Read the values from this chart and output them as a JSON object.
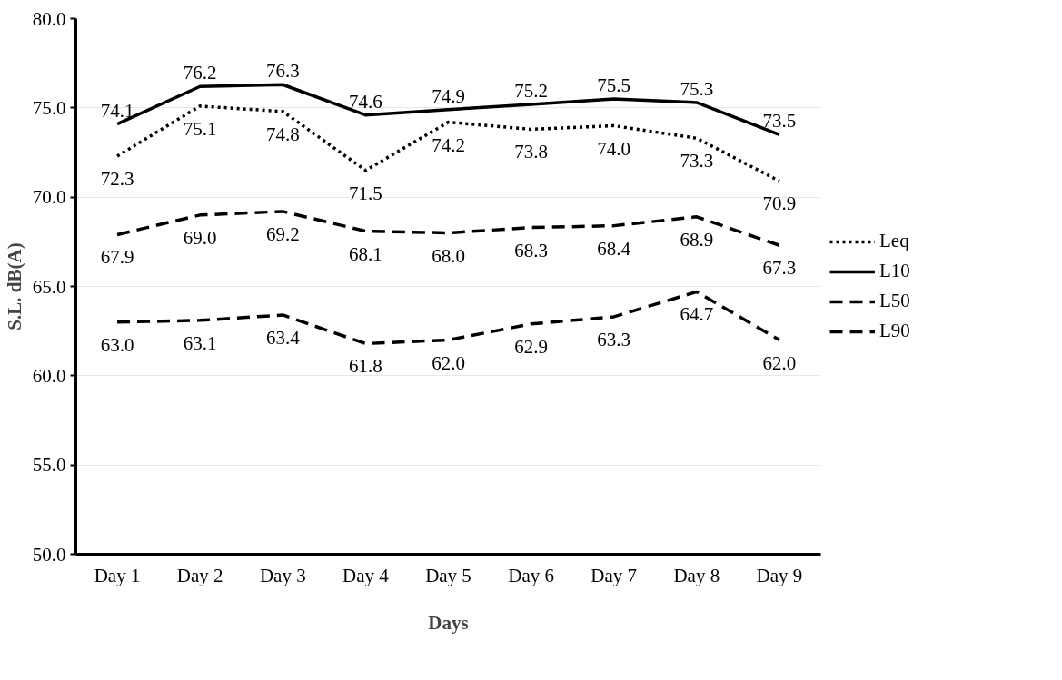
{
  "chart_data": {
    "type": "line",
    "xlabel": "Days",
    "ylabel": "S.L. dB(A)",
    "categories": [
      "Day 1",
      "Day 2",
      "Day 3",
      "Day 4",
      "Day 5",
      "Day 6",
      "Day 7",
      "Day 8",
      "Day 9"
    ],
    "series": [
      {
        "name": "Leq",
        "color": "#000000",
        "line_style": "dotted",
        "values": [
          72.3,
          75.1,
          74.8,
          71.5,
          74.2,
          73.8,
          74.0,
          73.3,
          70.9
        ],
        "value_labels": [
          "72.3",
          "75.1",
          "74.8",
          "71.5",
          "74.2",
          "73.8",
          "74.0",
          "73.3",
          "70.9"
        ]
      },
      {
        "name": "L10",
        "color": "#000000",
        "line_style": "solid",
        "values": [
          74.1,
          76.2,
          76.3,
          74.6,
          74.9,
          75.2,
          75.5,
          75.3,
          73.5
        ],
        "value_labels": [
          "74.1",
          "76.2",
          "76.3",
          "74.6",
          "74.9",
          "75.2",
          "75.5",
          "75.3",
          "73.5"
        ]
      },
      {
        "name": "L50",
        "color": "#000000",
        "line_style": "dashed",
        "values": [
          67.9,
          69.0,
          69.2,
          68.1,
          68.0,
          68.3,
          68.4,
          68.9,
          67.3
        ],
        "value_labels": [
          "67.9",
          "69.0",
          "69.2",
          "68.1",
          "68.0",
          "68.3",
          "68.4",
          "68.9",
          "67.3"
        ]
      },
      {
        "name": "L90",
        "color": "#000000",
        "line_style": "dashed",
        "values": [
          63.0,
          63.1,
          63.4,
          61.8,
          62.0,
          62.9,
          63.3,
          64.7,
          62.0
        ],
        "value_labels": [
          "63.0",
          "63.1",
          "63.4",
          "61.8",
          "62.0",
          "62.9",
          "63.3",
          "64.7",
          "62.0"
        ]
      }
    ],
    "ylim": [
      50,
      80
    ],
    "yticks": [
      {
        "value": 50,
        "label": "50.0"
      },
      {
        "value": 55,
        "label": "55.0"
      },
      {
        "value": 60,
        "label": "60.0"
      },
      {
        "value": 65,
        "label": "65.0"
      },
      {
        "value": 70,
        "label": "70.0"
      },
      {
        "value": 75,
        "label": "75.0"
      },
      {
        "value": 80,
        "label": "80.0"
      }
    ],
    "grid": "y",
    "legend": "right",
    "marker": "none"
  }
}
